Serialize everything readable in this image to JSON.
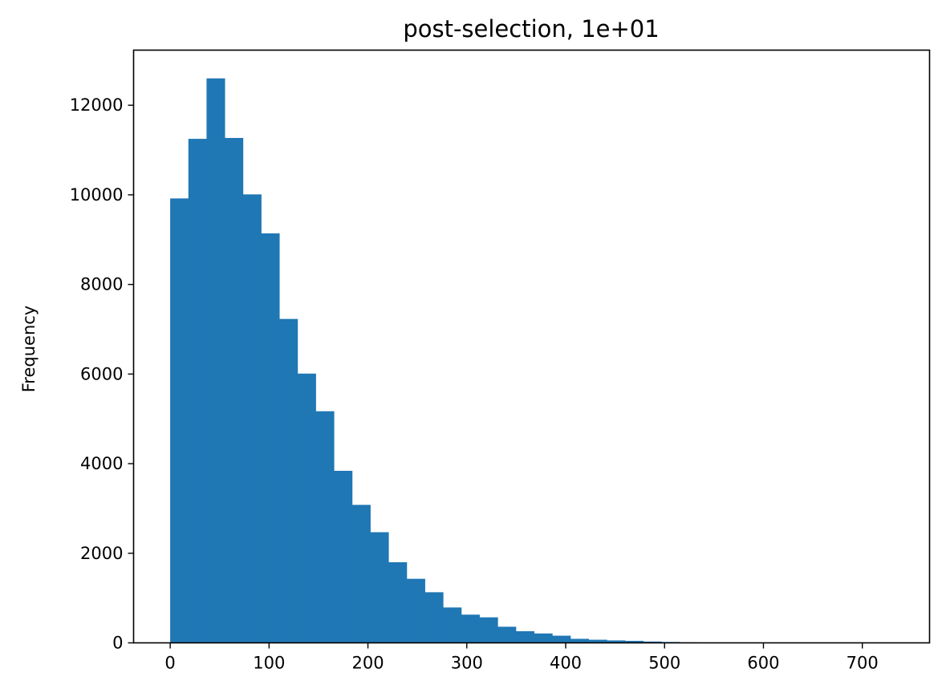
{
  "chart_data": {
    "type": "bar",
    "title": "post-selection, 1e+01",
    "xlabel": "",
    "ylabel": "Frequency",
    "bar_color": "#1f77b4",
    "xlim": [
      -37,
      768
    ],
    "ylim": [
      0,
      13230
    ],
    "xticks": [
      0,
      100,
      200,
      300,
      400,
      500,
      600,
      700
    ],
    "yticks": [
      0,
      2000,
      4000,
      6000,
      8000,
      10000,
      12000
    ],
    "grid": false,
    "legend": false,
    "bin_edges": [
      0,
      18.4,
      36.8,
      55.2,
      73.6,
      92.0,
      110.4,
      128.8,
      147.2,
      165.6,
      184.0,
      202.4,
      220.8,
      239.2,
      257.6,
      276.0,
      294.4,
      312.8,
      331.2,
      349.6,
      368.0,
      386.4,
      404.8,
      423.2,
      441.6,
      460.0,
      478.4,
      496.8,
      515.2,
      533.6,
      552.0,
      570.4,
      588.8,
      607.2,
      625.6,
      644.0,
      662.4,
      680.8,
      699.2,
      717.6,
      736.0
    ],
    "values": [
      9920,
      11250,
      12600,
      11270,
      10010,
      9140,
      7230,
      6010,
      5170,
      3840,
      3080,
      2470,
      1800,
      1430,
      1130,
      790,
      630,
      570,
      360,
      260,
      210,
      160,
      90,
      70,
      55,
      45,
      30,
      20,
      12,
      8,
      6,
      4,
      3,
      3,
      2,
      2,
      1,
      1,
      1,
      1
    ]
  }
}
